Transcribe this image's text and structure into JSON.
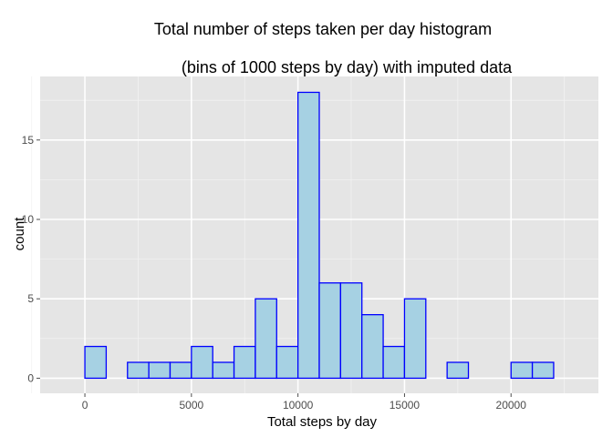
{
  "chart_data": {
    "type": "bar",
    "title_line1": "Total number of steps taken per day histogram",
    "title_line2": "(bins of 1000 steps by day) with imputed data",
    "xlabel": "Total steps by day",
    "ylabel": "count",
    "xlim": [
      -1000,
      23000
    ],
    "ylim": [
      0,
      19
    ],
    "bin_width": 1000,
    "bins": [
      {
        "x0": -1000,
        "x1": 0,
        "count": 0
      },
      {
        "x0": 0,
        "x1": 1000,
        "count": 2
      },
      {
        "x0": 1000,
        "x1": 2000,
        "count": 0
      },
      {
        "x0": 2000,
        "x1": 3000,
        "count": 1
      },
      {
        "x0": 3000,
        "x1": 4000,
        "count": 1
      },
      {
        "x0": 4000,
        "x1": 5000,
        "count": 1
      },
      {
        "x0": 5000,
        "x1": 6000,
        "count": 2
      },
      {
        "x0": 6000,
        "x1": 7000,
        "count": 1
      },
      {
        "x0": 7000,
        "x1": 8000,
        "count": 2
      },
      {
        "x0": 8000,
        "x1": 9000,
        "count": 5
      },
      {
        "x0": 9000,
        "x1": 10000,
        "count": 2
      },
      {
        "x0": 10000,
        "x1": 11000,
        "count": 18
      },
      {
        "x0": 11000,
        "x1": 12000,
        "count": 6
      },
      {
        "x0": 12000,
        "x1": 13000,
        "count": 6
      },
      {
        "x0": 13000,
        "x1": 14000,
        "count": 4
      },
      {
        "x0": 14000,
        "x1": 15000,
        "count": 2
      },
      {
        "x0": 15000,
        "x1": 16000,
        "count": 5
      },
      {
        "x0": 16000,
        "x1": 17000,
        "count": 0
      },
      {
        "x0": 17000,
        "x1": 18000,
        "count": 1
      },
      {
        "x0": 18000,
        "x1": 19000,
        "count": 0
      },
      {
        "x0": 19000,
        "x1": 20000,
        "count": 0
      },
      {
        "x0": 20000,
        "x1": 21000,
        "count": 1
      },
      {
        "x0": 21000,
        "x1": 22000,
        "count": 1
      },
      {
        "x0": 22000,
        "x1": 23000,
        "count": 0
      }
    ],
    "x_ticks": [
      0,
      5000,
      10000,
      15000,
      20000
    ],
    "x_tick_labels": [
      "0",
      "5000",
      "10000",
      "15000",
      "20000"
    ],
    "y_ticks": [
      0,
      5,
      10,
      15
    ],
    "y_tick_labels": [
      "0",
      "5",
      "10",
      "15"
    ],
    "grid": true,
    "legend": "none",
    "colors": {
      "panel_background": "#e5e5e5",
      "grid_major": "#ffffff",
      "grid_minor": "#f2f2f2",
      "bar_fill": "#a6d1e3",
      "bar_outline": "#0000ff",
      "tick_text": "#4d4d4d",
      "text": "#000000"
    }
  }
}
